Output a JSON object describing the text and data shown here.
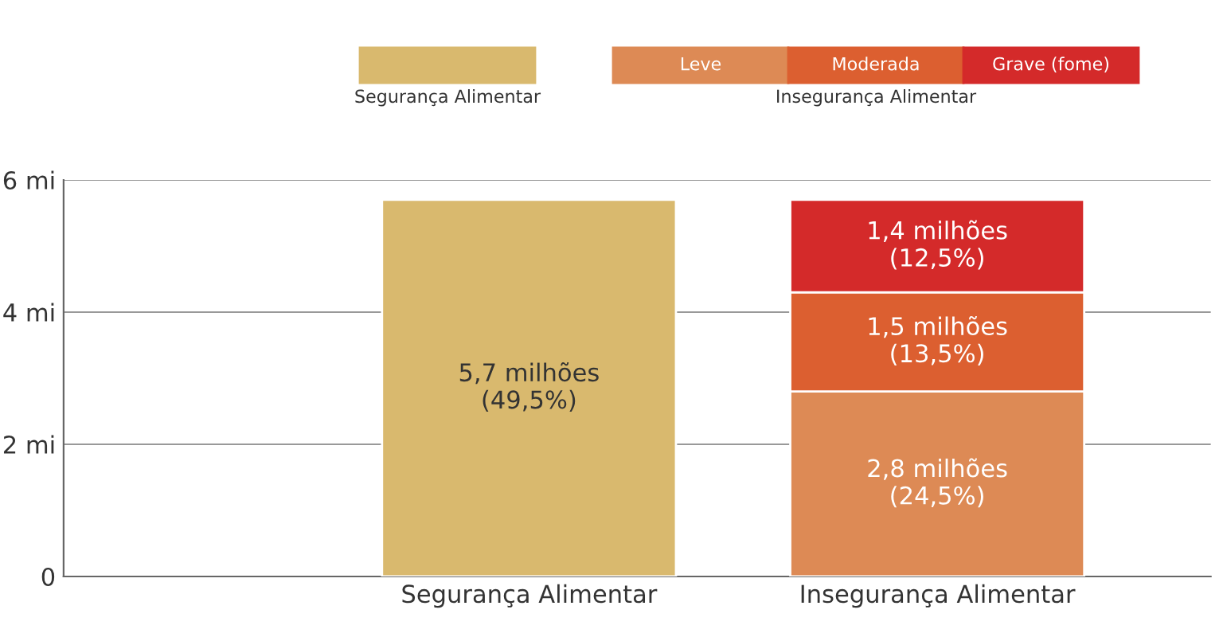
{
  "chart_data": {
    "type": "bar",
    "stacked": true,
    "categories": [
      "Segurança Alimentar",
      "Insegurança Alimentar"
    ],
    "series": [
      {
        "name": "Segurança Alimentar",
        "color": "#d9b96e",
        "values": [
          5.7,
          null
        ],
        "value_labels": [
          "5,7 milhões\n(49,5%)",
          null
        ]
      },
      {
        "name": "Leve",
        "color": "#dd8a55",
        "values": [
          null,
          2.8
        ],
        "value_labels": [
          null,
          "2,8 milhões\n(24,5%)"
        ]
      },
      {
        "name": "Moderada",
        "color": "#dc5f30",
        "values": [
          null,
          1.5
        ],
        "value_labels": [
          null,
          "1,5 milhões\n(13,5%)"
        ]
      },
      {
        "name": "Grave (fome)",
        "color": "#d42a2a",
        "values": [
          null,
          1.4
        ],
        "value_labels": [
          null,
          "1,4 milhões\n(12,5%)"
        ]
      }
    ],
    "legend_title": "Insegurança Alimentar",
    "legend": "top",
    "ylim": [
      0,
      6
    ],
    "yticks": [
      0,
      {
        "value": 2,
        "label": "2 mi"
      },
      {
        "value": 4,
        "label": "4 mi"
      },
      {
        "value": 6,
        "label": "6 mi"
      }
    ],
    "grid": "y"
  }
}
